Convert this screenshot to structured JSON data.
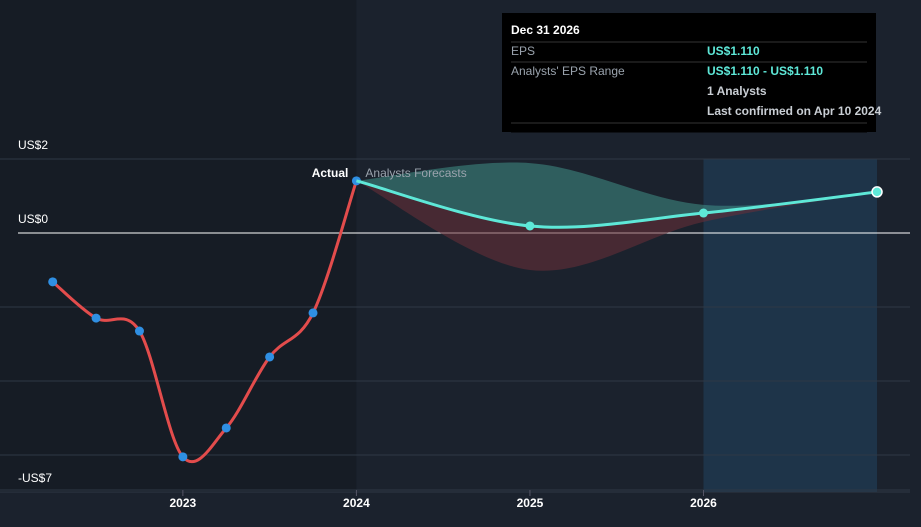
{
  "chart_data": {
    "type": "line",
    "xlim": [
      2022.05,
      2027.19
    ],
    "ylim": [
      -7,
      2
    ],
    "yticks": [
      {
        "value": 2,
        "label": "US$2"
      },
      {
        "value": 0,
        "label": "US$0"
      },
      {
        "value": -7,
        "label": "-US$7"
      }
    ],
    "minor_yticks": [
      -2,
      -4,
      -6
    ],
    "xticks": [
      2023,
      2024,
      2025,
      2026
    ],
    "grid": true,
    "series": [
      {
        "name": "Actual",
        "color": "#e34c4c",
        "marker_color": "#2f8fe3",
        "x": [
          2022.25,
          2022.5,
          2022.75,
          2023.0,
          2023.25,
          2023.5,
          2023.75,
          2024.0
        ],
        "values": [
          -1.32,
          -2.3,
          -2.65,
          -6.05,
          -5.27,
          -3.35,
          -2.16,
          1.41
        ]
      },
      {
        "name": "Analysts Forecasts",
        "color": "#5ee8d8",
        "marker_color": "#5ee8d8",
        "x": [
          2024.0,
          2025.0,
          2026.0,
          2027.0
        ],
        "values": [
          1.41,
          0.19,
          0.54,
          1.11
        ]
      }
    ],
    "range": {
      "x": [
        2024.0,
        2025.0,
        2026.0,
        2027.0
      ],
      "high": [
        1.41,
        1.89,
        0.76,
        1.11
      ],
      "low": [
        1.41,
        -1.0,
        0.3,
        1.11
      ]
    },
    "tooltip": {
      "date": "Dec 31 2026",
      "rows": [
        {
          "label": "EPS",
          "value": "US$1.110"
        },
        {
          "label": "Analysts' EPS Range",
          "value": "US$1.110 - US$1.110"
        },
        {
          "label": "",
          "value": "1 Analysts"
        },
        {
          "label": "",
          "value": "Last confirmed on Apr 10 2024"
        }
      ]
    }
  }
}
